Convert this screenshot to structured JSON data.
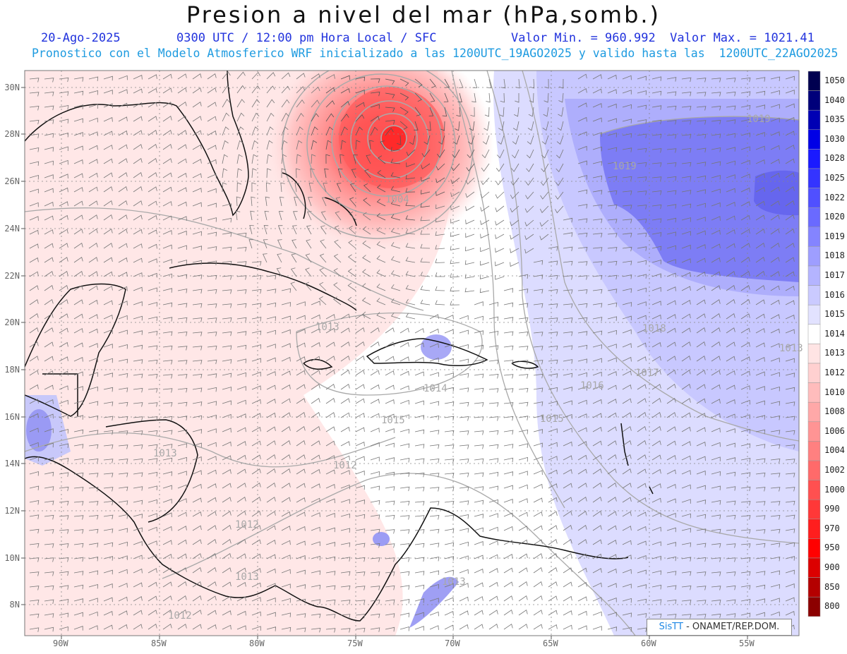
{
  "title": "Presion a nivel del mar (hPa,somb.)",
  "date": "20-Ago-2025",
  "time": "0300 UTC / 12:00 pm Hora Local / SFC",
  "minmax": "Valor Min. = 960.992  Valor Max. = 1021.41",
  "subtitle": "Pronostico con el Modelo Atmosferico WRF inicializado a las 1200UTC_19AGO2025 y valido hasta las  1200UTC_22AGO2025",
  "credit_brand": "SisTT",
  "credit_org": " - ONAMET/REP.DOM.",
  "lat_labels": [
    "30N",
    "28N",
    "26N",
    "24N",
    "22N",
    "20N",
    "18N",
    "16N",
    "14N",
    "12N",
    "10N",
    "8N"
  ],
  "lon_labels": [
    "90W",
    "85W",
    "80W",
    "75W",
    "70W",
    "65W",
    "60W",
    "55W"
  ],
  "colorbar": [
    "1050",
    "1040",
    "1035",
    "1030",
    "1028",
    "1025",
    "1022",
    "1020",
    "1019",
    "1018",
    "1017",
    "1016",
    "1015",
    "1014",
    "1013",
    "1012",
    "1010",
    "1008",
    "1006",
    "1004",
    "1002",
    "1000",
    "990",
    "970",
    "950",
    "900",
    "850",
    "800"
  ],
  "colorbar_colors": [
    "#000050",
    "#00007a",
    "#0000b4",
    "#0000e6",
    "#1a1aff",
    "#3434ff",
    "#5050ff",
    "#6a6aff",
    "#8484ff",
    "#9e9eff",
    "#b4b4ff",
    "#cacaff",
    "#e2e2ff",
    "#ffffff",
    "#ffe4e4",
    "#ffd0d0",
    "#ffbcbc",
    "#ffa8a8",
    "#ff9494",
    "#ff8080",
    "#ff6a6a",
    "#ff5050",
    "#ff3838",
    "#ff1e1e",
    "#ff0000",
    "#dc0000",
    "#b40000",
    "#8c0000"
  ],
  "contour_labels": [
    "1004",
    "1019",
    "1019",
    "1018",
    "1017",
    "1016",
    "1015",
    "1015",
    "1014",
    "1013",
    "1013",
    "1013",
    "1013",
    "1012",
    "1012",
    "1012",
    "1013"
  ]
}
